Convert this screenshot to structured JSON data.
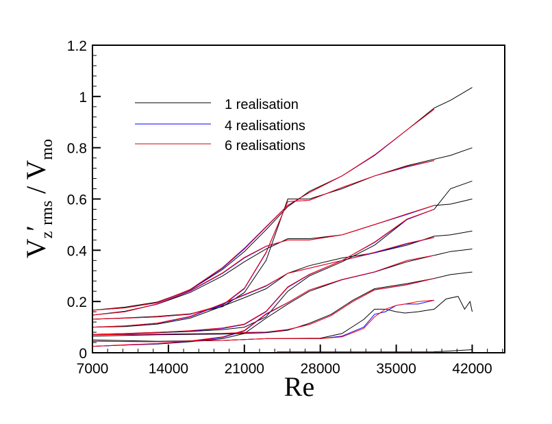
{
  "chart_data": {
    "type": "line",
    "title": "",
    "xlabel": "Re",
    "ylabel": {
      "main": "V",
      "sub1": "z",
      "prime": "′",
      "sub2": "rms",
      "sep": " / V",
      "sub3": "mo"
    },
    "xlim": [
      7000,
      45000
    ],
    "ylim": [
      0,
      1.2
    ],
    "xticks": [
      7000,
      14000,
      21000,
      28000,
      35000,
      42000
    ],
    "xtick_labels": [
      "7000",
      "14000",
      "21000",
      "28000",
      "35000",
      "42000"
    ],
    "yticks": [
      0,
      0.2,
      0.4,
      0.6,
      0.8,
      1,
      1.2
    ],
    "ytick_labels": [
      "0",
      "0.2",
      "0.4",
      "0.6",
      "0.8",
      "1",
      "1.2"
    ],
    "grid": false,
    "legend_placement": "upper-left inside",
    "series": [
      {
        "name": "1 realisation",
        "color": "#000000"
      },
      {
        "name": "4 realisations",
        "color": "#0000ff"
      },
      {
        "name": "6 realisations",
        "color": "#ff0000"
      }
    ],
    "curves": [
      {
        "x": [
          7000,
          10000,
          13000,
          16000,
          19000,
          21000,
          23000,
          25000,
          27000,
          30000,
          33000,
          36000,
          38500,
          40000,
          42000
        ],
        "black": [
          0.166,
          0.178,
          0.198,
          0.245,
          0.325,
          0.395,
          0.48,
          0.57,
          0.63,
          0.69,
          0.77,
          0.87,
          0.955,
          0.985,
          1.035
        ],
        "blue": [
          0.166,
          0.175,
          0.195,
          0.245,
          0.33,
          0.405,
          0.49,
          0.575,
          0.625,
          0.69,
          0.77,
          0.87,
          0.95
        ],
        "red": [
          0.166,
          0.175,
          0.196,
          0.247,
          0.333,
          0.408,
          0.492,
          0.576,
          0.625,
          0.69,
          0.772,
          0.87,
          0.95
        ]
      },
      {
        "x": [
          7000,
          10000,
          13000,
          16000,
          19000,
          21000,
          23000,
          25000,
          27000,
          30000,
          33000,
          36000,
          38500,
          40000,
          42000
        ],
        "black": [
          0.147,
          0.162,
          0.19,
          0.235,
          0.3,
          0.355,
          0.405,
          0.445,
          0.445,
          0.46,
          0.5,
          0.54,
          0.575,
          0.58,
          0.6
        ],
        "blue": [
          0.147,
          0.16,
          0.19,
          0.24,
          0.31,
          0.37,
          0.415,
          0.44,
          0.44,
          0.46,
          0.5,
          0.54,
          0.575
        ],
        "red": [
          0.147,
          0.16,
          0.191,
          0.242,
          0.312,
          0.372,
          0.416,
          0.44,
          0.44,
          0.46,
          0.5,
          0.542,
          0.575
        ]
      },
      {
        "x": [
          7000,
          10000,
          13000,
          16000,
          19000,
          21000,
          23000,
          25000,
          27000,
          30000,
          33000,
          36000,
          38500,
          40000,
          42000
        ],
        "black": [
          0.131,
          0.136,
          0.142,
          0.152,
          0.18,
          0.235,
          0.36,
          0.6,
          0.6,
          0.64,
          0.69,
          0.73,
          0.755,
          0.77,
          0.8
        ],
        "blue": [
          0.131,
          0.135,
          0.14,
          0.15,
          0.185,
          0.25,
          0.39,
          0.59,
          0.595,
          0.645,
          0.69,
          0.725,
          0.75
        ],
        "red": [
          0.131,
          0.135,
          0.14,
          0.151,
          0.187,
          0.252,
          0.392,
          0.59,
          0.595,
          0.645,
          0.69,
          0.727,
          0.75
        ]
      },
      {
        "x": [
          7000,
          10000,
          13000,
          16000,
          19000,
          21000,
          23000,
          25000,
          27000,
          30000,
          33000,
          36000,
          38500,
          40000,
          42000
        ],
        "black": [
          0.1,
          0.102,
          0.112,
          0.135,
          0.182,
          0.215,
          0.25,
          0.31,
          0.34,
          0.37,
          0.39,
          0.42,
          0.455,
          0.46,
          0.475
        ],
        "blue": [
          0.1,
          0.105,
          0.115,
          0.14,
          0.19,
          0.225,
          0.26,
          0.31,
          0.33,
          0.36,
          0.39,
          0.425,
          0.45
        ],
        "red": [
          0.1,
          0.105,
          0.116,
          0.142,
          0.192,
          0.227,
          0.262,
          0.31,
          0.33,
          0.36,
          0.392,
          0.427,
          0.45
        ]
      },
      {
        "x": [
          7000,
          10000,
          13000,
          16000,
          19000,
          21000,
          23000,
          25000,
          27000,
          30000,
          33000,
          36000,
          38500,
          40000,
          42000
        ],
        "black": [
          0.072,
          0.074,
          0.078,
          0.083,
          0.09,
          0.1,
          0.14,
          0.24,
          0.3,
          0.355,
          0.42,
          0.52,
          0.56,
          0.64,
          0.67
        ],
        "blue": [
          0.072,
          0.075,
          0.08,
          0.085,
          0.095,
          0.11,
          0.16,
          0.255,
          0.305,
          0.36,
          0.43,
          0.52,
          0.56
        ],
        "red": [
          0.072,
          0.075,
          0.08,
          0.086,
          0.097,
          0.112,
          0.162,
          0.257,
          0.306,
          0.36,
          0.432,
          0.522,
          0.56
        ]
      },
      {
        "x": [
          7000,
          10000,
          13000,
          16000,
          19000,
          21000,
          23000,
          25000,
          27000,
          30000,
          33000,
          36000,
          38500,
          40000,
          42000
        ],
        "black": [
          0.025,
          0.03,
          0.034,
          0.043,
          0.055,
          0.075,
          0.135,
          0.19,
          0.24,
          0.285,
          0.315,
          0.355,
          0.38,
          0.395,
          0.405
        ],
        "blue": [
          0.025,
          0.03,
          0.035,
          0.045,
          0.06,
          0.085,
          0.15,
          0.195,
          0.245,
          0.285,
          0.315,
          0.36,
          0.38
        ],
        "red": [
          0.025,
          0.031,
          0.036,
          0.046,
          0.062,
          0.087,
          0.152,
          0.196,
          0.245,
          0.286,
          0.316,
          0.36,
          0.38
        ]
      },
      {
        "x": [
          7000,
          13000,
          19000,
          21000,
          23000,
          25000,
          27000,
          29000,
          31000,
          33000,
          36000,
          38500,
          40000,
          42000
        ],
        "black": [
          0.065,
          0.07,
          0.073,
          0.076,
          0.078,
          0.088,
          0.115,
          0.15,
          0.205,
          0.25,
          0.27,
          0.29,
          0.305,
          0.315
        ],
        "blue": [
          0.07,
          0.072,
          0.075,
          0.078,
          0.08,
          0.09,
          0.11,
          0.145,
          0.2,
          0.245,
          0.265,
          0.29
        ],
        "red": [
          0.07,
          0.073,
          0.076,
          0.079,
          0.081,
          0.091,
          0.11,
          0.145,
          0.2,
          0.246,
          0.266,
          0.29
        ]
      },
      {
        "x": [
          7000,
          13000,
          19000,
          23000,
          28000,
          30000,
          32000,
          33000,
          34000,
          35000,
          35800,
          37000,
          38500,
          39600,
          40700,
          41300,
          41800,
          42000
        ],
        "black": [
          0.05,
          0.045,
          0.048,
          0.055,
          0.057,
          0.075,
          0.13,
          0.17,
          0.17,
          0.16,
          0.155,
          0.16,
          0.17,
          0.21,
          0.22,
          0.17,
          0.2,
          0.16
        ],
        "blue": [
          0.045,
          0.043,
          0.048,
          0.055,
          0.055,
          0.065,
          0.1,
          0.15,
          0.16,
          0.185,
          0.19,
          0.19,
          0.205
        ],
        "red": [
          0.045,
          0.043,
          0.048,
          0.055,
          0.055,
          0.062,
          0.095,
          0.14,
          0.17,
          0.185,
          0.19,
          0.2,
          0.205
        ]
      },
      {
        "x": [
          24000,
          30000,
          36000,
          38500,
          40000,
          42000
        ],
        "black": [
          0.002,
          0.002,
          0.003,
          0.004,
          0.007,
          0.012
        ],
        "blue": [
          0.003,
          0.003,
          0.003,
          0.003
        ],
        "red": [
          0.004,
          0.004,
          0.004,
          0.004
        ]
      }
    ]
  }
}
